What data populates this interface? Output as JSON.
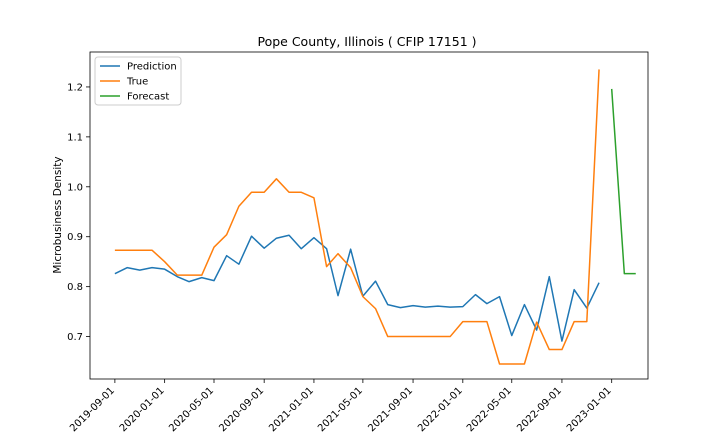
{
  "chart_data": {
    "type": "line",
    "title": "Pope County, Illinois ( CFIP 17151 )",
    "xlabel": "",
    "ylabel": "Microbusiness Density",
    "x_ticks": [
      "2019-09-01",
      "2020-01-01",
      "2020-05-01",
      "2020-09-01",
      "2021-01-01",
      "2021-05-01",
      "2021-09-01",
      "2022-01-01",
      "2022-05-01",
      "2022-09-01",
      "2023-01-01"
    ],
    "y_ticks": [
      "0.7",
      "0.8",
      "0.9",
      "1.0",
      "1.1",
      "1.2"
    ],
    "xlim": [
      "2019-07-02",
      "2023-03-31"
    ],
    "ylim": [
      0.615,
      1.27
    ],
    "grid": false,
    "legend_position": "upper-left",
    "series": [
      {
        "name": "Prediction",
        "color": "#1f77b4",
        "x": [
          "2019-09-01",
          "2019-10-01",
          "2019-11-01",
          "2019-12-01",
          "2020-01-01",
          "2020-02-01",
          "2020-03-01",
          "2020-04-01",
          "2020-05-01",
          "2020-06-01",
          "2020-07-01",
          "2020-08-01",
          "2020-09-01",
          "2020-10-01",
          "2020-11-01",
          "2020-12-01",
          "2021-01-01",
          "2021-02-01",
          "2021-03-01",
          "2021-04-01",
          "2021-05-01",
          "2021-06-01",
          "2021-07-01",
          "2021-08-01",
          "2021-09-01",
          "2021-10-01",
          "2021-11-01",
          "2021-12-01",
          "2022-01-01",
          "2022-02-01",
          "2022-03-01",
          "2022-04-01",
          "2022-05-01",
          "2022-06-01",
          "2022-07-01",
          "2022-08-01",
          "2022-09-01",
          "2022-10-01",
          "2022-11-01",
          "2022-12-01"
        ],
        "values": [
          0.826,
          0.838,
          0.833,
          0.838,
          0.835,
          0.82,
          0.81,
          0.818,
          0.812,
          0.862,
          0.845,
          0.901,
          0.877,
          0.897,
          0.903,
          0.876,
          0.898,
          0.876,
          0.782,
          0.875,
          0.781,
          0.811,
          0.764,
          0.758,
          0.762,
          0.759,
          0.761,
          0.759,
          0.76,
          0.784,
          0.766,
          0.78,
          0.702,
          0.764,
          0.713,
          0.82,
          0.691,
          0.794,
          0.757,
          0.808
        ]
      },
      {
        "name": "True",
        "color": "#ff7f0e",
        "x": [
          "2019-09-01",
          "2019-10-01",
          "2019-11-01",
          "2019-12-01",
          "2020-01-01",
          "2020-02-01",
          "2020-03-01",
          "2020-04-01",
          "2020-05-01",
          "2020-06-01",
          "2020-07-01",
          "2020-08-01",
          "2020-09-01",
          "2020-10-01",
          "2020-11-01",
          "2020-12-01",
          "2021-01-01",
          "2021-02-01",
          "2021-03-01",
          "2021-04-01",
          "2021-05-01",
          "2021-06-01",
          "2021-07-01",
          "2021-08-01",
          "2021-09-01",
          "2021-10-01",
          "2021-11-01",
          "2021-12-01",
          "2022-01-01",
          "2022-02-01",
          "2022-03-01",
          "2022-04-01",
          "2022-05-01",
          "2022-06-01",
          "2022-07-01",
          "2022-08-01",
          "2022-09-01",
          "2022-10-01",
          "2022-11-01",
          "2022-12-01"
        ],
        "values": [
          0.873,
          0.873,
          0.873,
          0.873,
          0.85,
          0.823,
          0.823,
          0.823,
          0.879,
          0.904,
          0.961,
          0.989,
          0.989,
          1.016,
          0.989,
          0.989,
          0.978,
          0.84,
          0.866,
          0.838,
          0.78,
          0.756,
          0.7,
          0.7,
          0.7,
          0.7,
          0.7,
          0.7,
          0.73,
          0.73,
          0.73,
          0.645,
          0.645,
          0.645,
          0.729,
          0.674,
          0.674,
          0.73,
          0.73,
          1.235
        ]
      },
      {
        "name": "Forecast",
        "color": "#2ca02c",
        "x": [
          "2023-01-01",
          "2023-02-01",
          "2023-03-01"
        ],
        "values": [
          1.196,
          0.826,
          0.826
        ]
      }
    ]
  }
}
